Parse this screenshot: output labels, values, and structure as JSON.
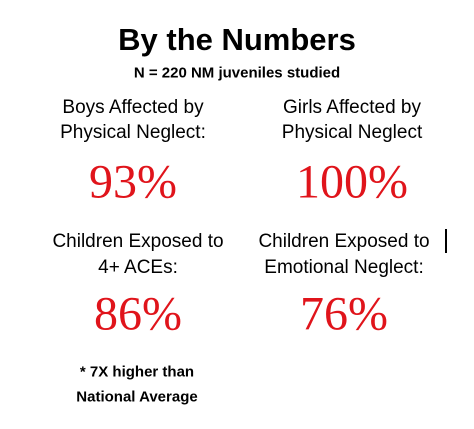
{
  "header": {
    "title": "By the Numbers",
    "subtitle": "N = 220 NM juveniles studied"
  },
  "stats": [
    {
      "label": [
        "Boys Affected by",
        "Physical Neglect:"
      ],
      "value": "93%"
    },
    {
      "label": [
        "Girls Affected by",
        "Physical Neglect"
      ],
      "value": "100%"
    },
    {
      "label": [
        "Children Exposed to",
        "4+ ACEs:"
      ],
      "value": "86%"
    },
    {
      "label": [
        "Children Exposed to",
        "Emotional Neglect:"
      ],
      "value": "76%"
    }
  ],
  "footnote": [
    "* 7X higher than",
    "National Average"
  ]
}
